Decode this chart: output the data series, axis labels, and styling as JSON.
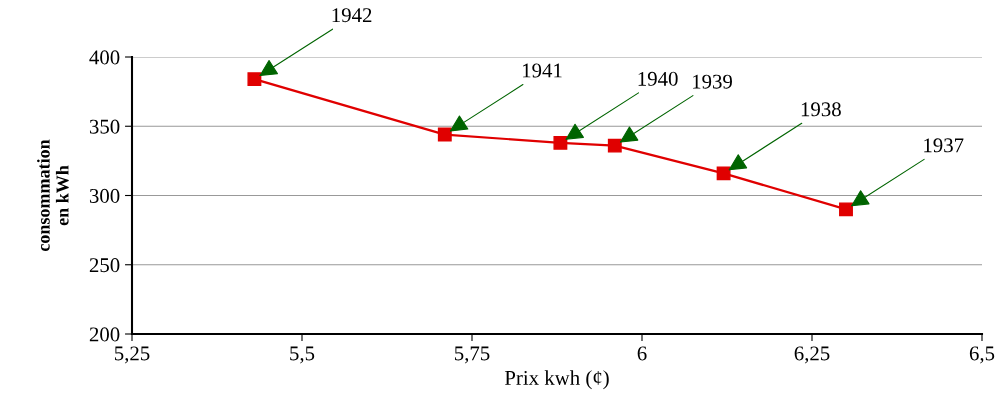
{
  "chart_data": {
    "type": "line",
    "xlabel": "Prix kwh (¢)",
    "ylabel": "consommation\nen kWh",
    "x": [
      5.43,
      5.71,
      5.88,
      5.96,
      6.12,
      6.3
    ],
    "series": [
      {
        "color": "#e00000",
        "values": [
          384,
          344,
          338,
          336,
          316,
          290
        ]
      }
    ],
    "marker": "square",
    "line_style": "solid",
    "grid": "y",
    "xlim": [
      5.25,
      6.5
    ],
    "ylim": [
      200,
      400
    ],
    "xticks": [
      {
        "value": 5.25,
        "label": "5,25"
      },
      {
        "value": 5.5,
        "label": "5,5"
      },
      {
        "value": 5.75,
        "label": "5,75"
      },
      {
        "value": 6,
        "label": "6"
      },
      {
        "value": 6.25,
        "label": "6,25"
      },
      {
        "value": 6.5,
        "label": "6,5"
      }
    ],
    "yticks": [
      200,
      250,
      300,
      350,
      400
    ],
    "annotations": [
      {
        "text": "1942",
        "x": 5.43,
        "y": 384
      },
      {
        "text": "1941",
        "x": 5.71,
        "y": 344
      },
      {
        "text": "1940",
        "x": 5.88,
        "y": 338
      },
      {
        "text": "1939",
        "x": 5.96,
        "y": 336
      },
      {
        "text": "1938",
        "x": 6.12,
        "y": 316
      },
      {
        "text": "1937",
        "x": 6.3,
        "y": 290
      }
    ]
  }
}
